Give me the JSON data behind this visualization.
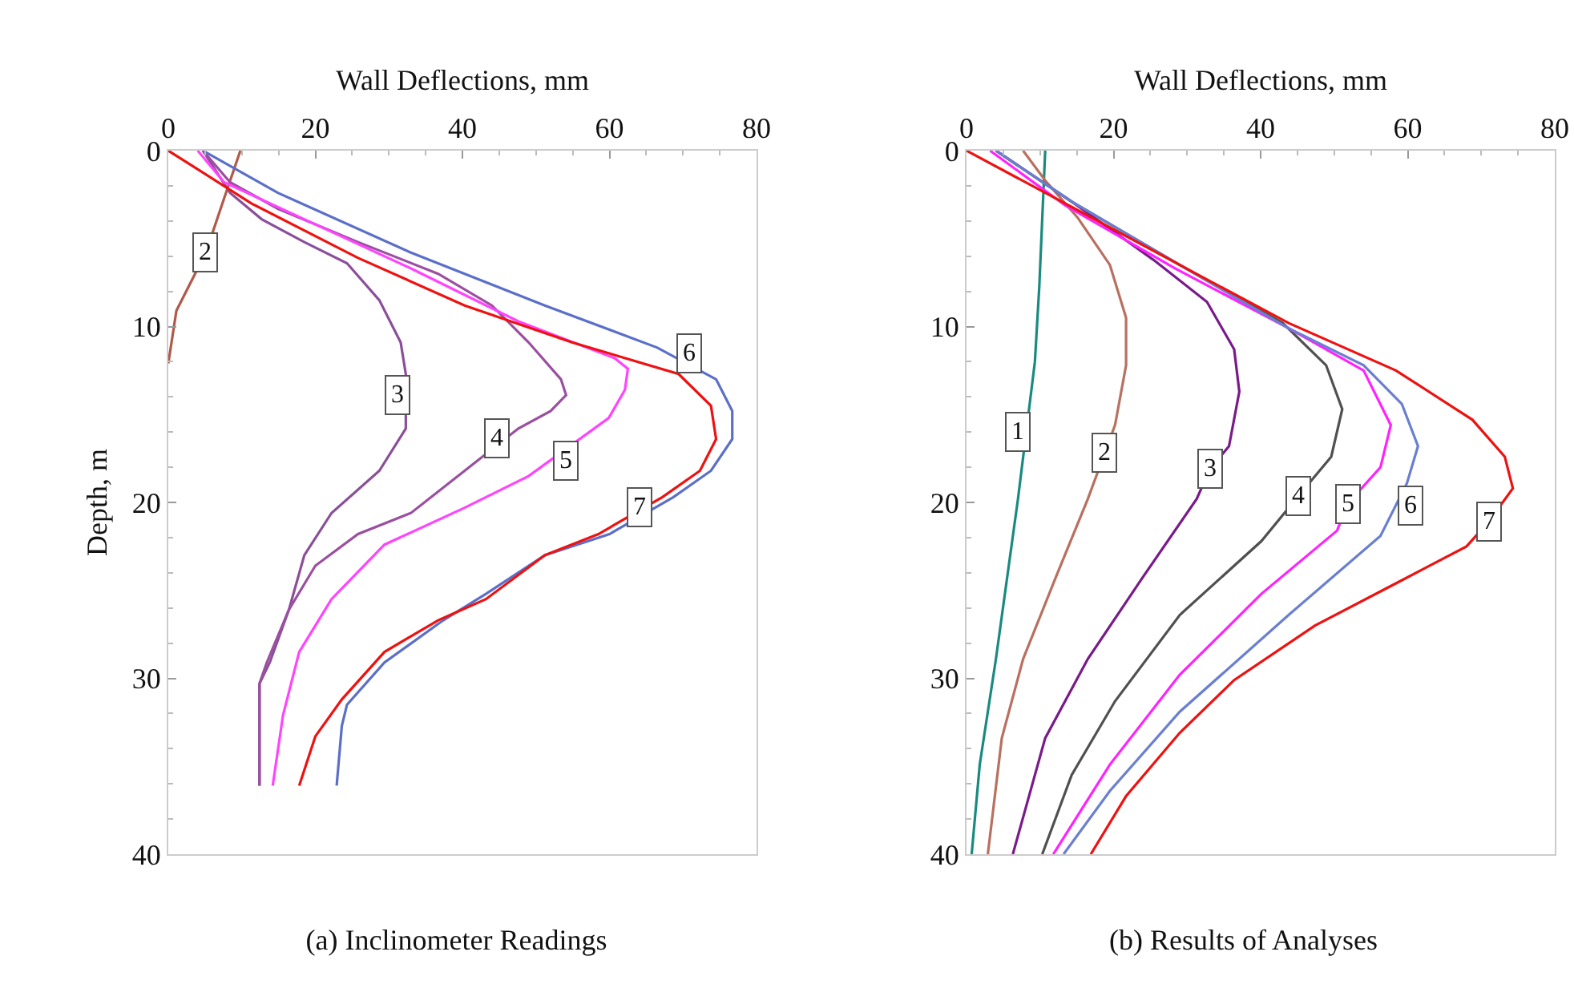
{
  "chart_data": [
    {
      "type": "line",
      "title": "(a) Inclinometer Readings",
      "xlabel": "Wall Deflections, mm",
      "ylabel": "Depth, m",
      "xlim": [
        0,
        80
      ],
      "xticks": [
        0,
        20,
        40,
        60,
        80
      ],
      "ylim": [
        40,
        0
      ],
      "yticks": [
        0,
        10,
        20,
        30,
        40
      ],
      "grid": false,
      "marker": "none",
      "line_style": "solid",
      "series": [
        {
          "color": "#b05a4a",
          "x": [
            9.8,
            7.6,
            5.1,
            1.1,
            0
          ],
          "values": [
            0,
            2.7,
            5.8,
            9.1,
            12.1
          ]
        },
        {
          "color": "#8b4f9a",
          "x": [
            4.7,
            8.4,
            12.7,
            18.5,
            24.3,
            28.7,
            31.6,
            32.3,
            32.3,
            28.7,
            22.2,
            18.5,
            16.4,
            13.8,
            12.4,
            12.4
          ],
          "values": [
            0,
            2.4,
            3.9,
            5.2,
            6.4,
            8.5,
            10.9,
            12.7,
            15.8,
            18.2,
            20.6,
            23,
            26.1,
            29.1,
            30.3,
            36.1
          ]
        },
        {
          "color": "#9a4fa0",
          "x": [
            4.7,
            8.4,
            14.9,
            25.8,
            36.7,
            44,
            49,
            53.4,
            54.1,
            52,
            47.6,
            40.3,
            33,
            25.8,
            20,
            16.4,
            13.4,
            12.4,
            12.4
          ],
          "values": [
            0,
            1.8,
            3.3,
            5.2,
            7,
            8.8,
            10.9,
            13,
            13.9,
            14.8,
            15.8,
            18.2,
            20.6,
            21.8,
            23.6,
            26.1,
            29.1,
            30.3,
            36.1
          ]
        },
        {
          "color": "#ff44ff",
          "x": [
            4,
            7.6,
            18.5,
            33,
            47.6,
            60.7,
            62.5,
            62.1,
            59.9,
            49,
            40.3,
            29.4,
            22.2,
            17.8,
            15.6,
            14.2
          ],
          "values": [
            0,
            1.8,
            3.9,
            6.7,
            9.7,
            11.8,
            12.4,
            13.6,
            15.2,
            18.5,
            20.3,
            22.4,
            25.5,
            28.5,
            32.1,
            36.1
          ]
        },
        {
          "color": "#5b6fc8",
          "x": [
            4.7,
            14.9,
            33,
            51.2,
            66.5,
            74.5,
            76.7,
            76.7,
            73.8,
            68.7,
            60,
            51.2,
            43.2,
            37.4,
            29.4,
            24.3,
            23.6,
            22.9
          ],
          "values": [
            0,
            2.4,
            5.8,
            8.8,
            11.2,
            13,
            14.8,
            16.4,
            18.2,
            19.7,
            21.8,
            23,
            25.2,
            26.7,
            29.1,
            31.5,
            32.7,
            36.1
          ]
        },
        {
          "color": "#ee1111",
          "x": [
            0,
            11.3,
            25.8,
            40.3,
            54.9,
            69.4,
            73.8,
            74.5,
            72.3,
            67.2,
            58.5,
            51.2,
            43.2,
            36.7,
            29.4,
            23.6,
            20,
            17.8
          ],
          "values": [
            0,
            3,
            6.1,
            8.8,
            10.9,
            12.7,
            14.5,
            16.4,
            18.2,
            19.7,
            21.8,
            23,
            25.5,
            26.7,
            28.5,
            31.2,
            33.3,
            36.1
          ]
        }
      ],
      "annotations": [
        {
          "text": "2",
          "x": 5.1,
          "y": 5.8
        },
        {
          "text": "3",
          "x": 31.2,
          "y": 13.9
        },
        {
          "text": "4",
          "x": 44.7,
          "y": 16.4
        },
        {
          "text": "5",
          "x": 54.1,
          "y": 17.6
        },
        {
          "text": "6",
          "x": 70.9,
          "y": 11.5
        },
        {
          "text": "7",
          "x": 64,
          "y": 20.3
        }
      ]
    },
    {
      "type": "line",
      "title": "(b) Results of Analyses",
      "xlabel": "Wall Deflections, mm",
      "xlim": [
        0,
        80
      ],
      "xticks": [
        0,
        20,
        40,
        60,
        80
      ],
      "ylim": [
        40,
        0
      ],
      "yticks": [
        0,
        10,
        20,
        30,
        40
      ],
      "grid": false,
      "marker": "none",
      "line_style": "solid",
      "series": [
        {
          "color": "#1a8a80",
          "x": [
            10.7,
            9.9,
            9.3,
            7,
            4,
            1.8,
            0.7
          ],
          "values": [
            0,
            7.7,
            12,
            19.8,
            28.9,
            34.9,
            40
          ]
        },
        {
          "color": "#b87060",
          "x": [
            7.7,
            10.7,
            15.1,
            19.5,
            21.7,
            21.7,
            20.2,
            18.8,
            16.5,
            12.1,
            7.7,
            4.8,
            2.9
          ],
          "values": [
            0,
            1.7,
            3.8,
            6.5,
            9.5,
            12.2,
            15.6,
            17.2,
            19.8,
            24.3,
            28.9,
            33.4,
            40
          ]
        },
        {
          "color": "#7a1a8a",
          "x": [
            4,
            14.3,
            25.4,
            32.7,
            36.4,
            37.1,
            35.7,
            33.1,
            31.3,
            23.9,
            16.5,
            10.7,
            6.3
          ],
          "values": [
            0,
            2.9,
            6.2,
            8.6,
            11.3,
            13.7,
            16.8,
            18.1,
            19.8,
            24.3,
            28.9,
            33.4,
            40
          ]
        },
        {
          "color": "#505050",
          "x": [
            4,
            14.3,
            29,
            43,
            48.9,
            51.1,
            49.6,
            45.2,
            40.1,
            29,
            20.2,
            14.3,
            10.3
          ],
          "values": [
            0,
            2.9,
            6.5,
            9.8,
            12.2,
            14.7,
            17.4,
            19.6,
            22.2,
            26.4,
            31.3,
            35.5,
            40
          ]
        },
        {
          "color": "#ff22ff",
          "x": [
            3.2,
            13.4,
            28.4,
            43.8,
            54,
            57.7,
            56.3,
            51.8,
            50.4,
            40.1,
            29,
            19.5,
            11.8
          ],
          "values": [
            0,
            3.1,
            6.7,
            10.1,
            12.5,
            15.6,
            18,
            20.1,
            21.6,
            25.2,
            29.8,
            34.9,
            40
          ]
        },
        {
          "color": "#6a7fd0",
          "x": [
            4,
            14.3,
            29,
            43.8,
            54,
            59.2,
            61.4,
            59.9,
            56.3,
            43.8,
            29,
            19.5,
            13.2
          ],
          "values": [
            0,
            2.9,
            6.5,
            10.1,
            12.2,
            14.4,
            16.8,
            18.9,
            21.9,
            26.4,
            31.9,
            36.4,
            40
          ]
        },
        {
          "color": "#ee1111",
          "x": [
            0,
            14.3,
            29,
            43.8,
            58.4,
            68.8,
            73.2,
            74.3,
            71,
            68,
            58.4,
            47.4,
            36.4,
            29,
            21.7,
            16.9
          ],
          "values": [
            0,
            3.2,
            6.5,
            9.8,
            12.5,
            15.3,
            17.4,
            19.2,
            21.1,
            22.5,
            24.6,
            27,
            30.1,
            33.1,
            36.7,
            40
          ]
        }
      ],
      "annotations": [
        {
          "text": "1",
          "x": 7,
          "y": 16
        },
        {
          "text": "2",
          "x": 18.8,
          "y": 17.2
        },
        {
          "text": "3",
          "x": 33.1,
          "y": 18.1
        },
        {
          "text": "4",
          "x": 45.2,
          "y": 19.6
        },
        {
          "text": "5",
          "x": 51.8,
          "y": 20.1
        },
        {
          "text": "6",
          "x": 60.3,
          "y": 20.2
        },
        {
          "text": "7",
          "x": 71,
          "y": 21.1
        }
      ]
    }
  ]
}
